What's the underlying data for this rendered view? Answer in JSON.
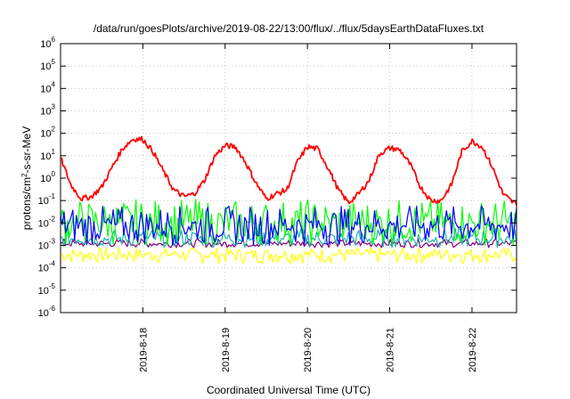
{
  "chart_data": {
    "type": "line",
    "title": "/data/run/goesPlots/archive/2019-08-22/13:00/flux/../flux/5daysEarthDataFluxes.txt",
    "xlabel": "Coordinated Universal Time (UTC)",
    "ylabel": {
      "prefix": "protons/cm",
      "sup": "2",
      "suffix": "-s-sr-MeV"
    },
    "scale": {
      "x": "date",
      "y": "log"
    },
    "xlim": [
      "2019-08-17T00:00",
      "2019-08-22T13:00"
    ],
    "ylim": [
      1e-06,
      1000000.0
    ],
    "grid": true,
    "legend": "none",
    "x_ticks": [
      "2019-8-18",
      "2019-8-19",
      "2019-8-20",
      "2019-8-21",
      "2019-8-22"
    ],
    "y_ticks": [
      {
        "base": "10",
        "exp": "-6"
      },
      {
        "base": "10",
        "exp": "-5"
      },
      {
        "base": "10",
        "exp": "-4"
      },
      {
        "base": "10",
        "exp": "-3"
      },
      {
        "base": "10",
        "exp": "-2"
      },
      {
        "base": "10",
        "exp": "-1"
      },
      {
        "base": "10",
        "exp": "0"
      },
      {
        "base": "10",
        "exp": "1"
      },
      {
        "base": "10",
        "exp": "2"
      },
      {
        "base": "10",
        "exp": "3"
      },
      {
        "base": "10",
        "exp": "4"
      },
      {
        "base": "10",
        "exp": "5"
      },
      {
        "base": "10",
        "exp": "6"
      }
    ],
    "series": [
      {
        "color": "#ffff00",
        "min": 0.00015,
        "max": 0.0008,
        "approx_level": 0.0004
      },
      {
        "color": "#800080",
        "min": 0.0008,
        "max": 0.002,
        "approx_level": 0.0012
      },
      {
        "color": "#20b2aa",
        "min": 0.0008,
        "max": 0.006,
        "approx_level": 0.002
      },
      {
        "color": "#00ff00",
        "min": 0.001,
        "max": 0.12,
        "approx_level": 0.01
      },
      {
        "color": "#0000ff",
        "min": 0.001,
        "max": 0.06,
        "approx_level": 0.008
      },
      {
        "color": "#ff0000",
        "times": [
          "2019-08-17T00:00",
          "2019-08-17T03:00",
          "2019-08-17T06:00",
          "2019-08-17T09:00",
          "2019-08-17T12:00",
          "2019-08-17T15:00",
          "2019-08-17T18:00",
          "2019-08-17T21:00",
          "2019-08-18T00:00",
          "2019-08-18T03:00",
          "2019-08-18T06:00",
          "2019-08-18T09:00",
          "2019-08-18T12:00",
          "2019-08-18T15:00",
          "2019-08-18T18:00",
          "2019-08-18T21:00",
          "2019-08-19T00:00",
          "2019-08-19T03:00",
          "2019-08-19T06:00",
          "2019-08-19T09:00",
          "2019-08-19T12:00",
          "2019-08-19T15:00",
          "2019-08-19T18:00",
          "2019-08-19T21:00",
          "2019-08-20T00:00",
          "2019-08-20T03:00",
          "2019-08-20T06:00",
          "2019-08-20T09:00",
          "2019-08-20T12:00",
          "2019-08-20T15:00",
          "2019-08-20T18:00",
          "2019-08-20T21:00",
          "2019-08-21T00:00",
          "2019-08-21T03:00",
          "2019-08-21T06:00",
          "2019-08-21T09:00",
          "2019-08-21T12:00",
          "2019-08-21T15:00",
          "2019-08-21T18:00",
          "2019-08-21T21:00",
          "2019-08-22T00:00",
          "2019-08-22T03:00",
          "2019-08-22T06:00",
          "2019-08-22T09:00",
          "2019-08-22T12:00"
        ],
        "values": [
          8,
          0.5,
          0.12,
          0.15,
          0.4,
          3,
          20,
          55,
          55,
          15,
          2,
          0.3,
          0.15,
          0.2,
          0.8,
          10,
          28,
          25,
          5,
          0.6,
          0.12,
          0.2,
          0.3,
          5,
          25,
          20,
          3,
          0.3,
          0.08,
          0.2,
          0.8,
          12,
          22,
          18,
          4,
          0.4,
          0.1,
          0.1,
          0.5,
          15,
          45,
          25,
          3,
          0.2,
          0.08
        ]
      }
    ]
  }
}
